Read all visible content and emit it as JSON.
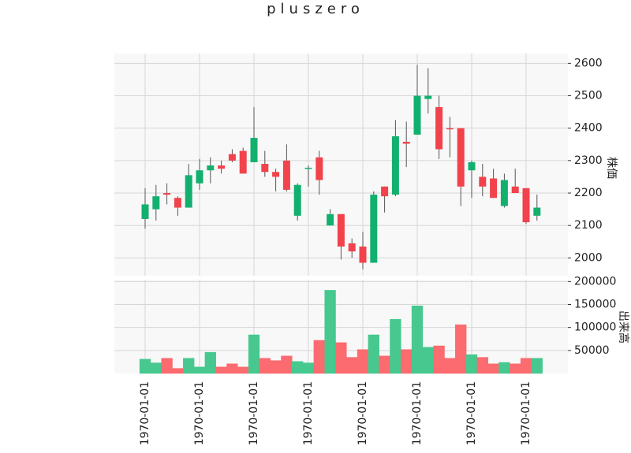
{
  "chart_data": {
    "type": "candlestick",
    "title": "pluszero",
    "ylabel": "株価",
    "categories": [
      "1970-01-01",
      null,
      null,
      null,
      null,
      "1970-01-01",
      null,
      null,
      null,
      null,
      "1970-01-01",
      null,
      null,
      null,
      null,
      "1970-01-01",
      null,
      null,
      null,
      null,
      "1970-01-01",
      null,
      null,
      null,
      null,
      "1970-01-01",
      null,
      null,
      null,
      null,
      "1970-01-01",
      null,
      null,
      null,
      null,
      "1970-01-01",
      null
    ],
    "open": [
      2120,
      2150,
      2200,
      2185,
      2155,
      2230,
      2270,
      2285,
      2320,
      2330,
      2295,
      2290,
      2265,
      2300,
      2130,
      2275,
      2310,
      2100,
      2135,
      2045,
      2035,
      1985,
      2220,
      2195,
      2358,
      2380,
      2490,
      2465,
      2400,
      2400,
      2270,
      2250,
      2245,
      2160,
      2220,
      2215,
      2130
    ],
    "high": [
      2215,
      2225,
      2230,
      2190,
      2290,
      2305,
      2310,
      2300,
      2335,
      2340,
      2465,
      2330,
      2275,
      2350,
      2230,
      2285,
      2330,
      2150,
      2135,
      2060,
      2080,
      2205,
      2220,
      2425,
      2420,
      2595,
      2585,
      2500,
      2435,
      2400,
      2300,
      2290,
      2275,
      2260,
      2275,
      2215,
      2195
    ],
    "low": [
      2090,
      2115,
      2165,
      2130,
      2155,
      2210,
      2230,
      2260,
      2295,
      2260,
      2295,
      2250,
      2205,
      2205,
      2115,
      2220,
      2195,
      2100,
      1995,
      2000,
      1965,
      1985,
      2140,
      2190,
      2280,
      2380,
      2445,
      2305,
      2310,
      2160,
      2185,
      2190,
      2185,
      2155,
      2200,
      2105,
      2115
    ],
    "close": [
      2165,
      2190,
      2195,
      2155,
      2255,
      2270,
      2285,
      2275,
      2300,
      2260,
      2370,
      2265,
      2250,
      2210,
      2225,
      2278,
      2240,
      2135,
      2035,
      2020,
      1985,
      2195,
      2190,
      2375,
      2352,
      2500,
      2500,
      2335,
      2398,
      2220,
      2295,
      2220,
      2185,
      2240,
      2200,
      2110,
      2155
    ],
    "ylim": [
      1945,
      2630
    ],
    "yticks": [
      2000,
      2100,
      2200,
      2300,
      2400,
      2500,
      2600
    ],
    "up_color": "#12b06e",
    "down_color": "#f2424b",
    "grid": true,
    "volume": {
      "type": "bar",
      "ylabel": "出来高",
      "values": [
        31000,
        23000,
        33000,
        11000,
        33000,
        14000,
        46000,
        14000,
        21000,
        14000,
        84000,
        33000,
        28000,
        38000,
        26000,
        23000,
        72000,
        181000,
        67000,
        35000,
        52000,
        84000,
        38000,
        118000,
        52000,
        147000,
        57000,
        60000,
        33000,
        106000,
        41000,
        35000,
        21000,
        24000,
        21000,
        33000,
        33000
      ],
      "ylim": [
        0,
        204000
      ],
      "yticks": [
        50000,
        100000,
        150000,
        200000
      ],
      "up_color": "#46c88f",
      "down_color": "#fb6b6f"
    }
  }
}
